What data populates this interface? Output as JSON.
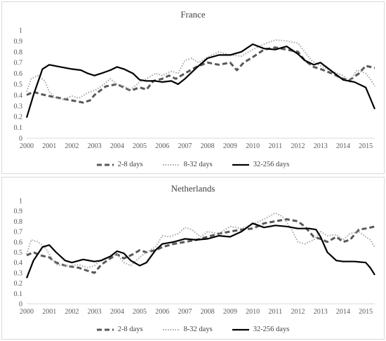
{
  "chart_data": [
    {
      "type": "line",
      "title": "France",
      "xlabel": "",
      "ylabel": "",
      "xlim": [
        2000,
        2015.4
      ],
      "ylim": [
        0,
        1
      ],
      "x_ticks": [
        "2000",
        "2001",
        "2002",
        "2003",
        "2004",
        "2005",
        "2006",
        "2007",
        "2008",
        "2009",
        "2010",
        "2011",
        "2012",
        "2013",
        "2014",
        "2015"
      ],
      "y_ticks": [
        "0",
        "0.1",
        "0.2",
        "0.3",
        "0.4",
        "0.5",
        "0.6",
        "0.7",
        "0.8",
        "0.9",
        "1"
      ],
      "grid": false,
      "legend_position": "bottom",
      "series": [
        {
          "name": "2-8 days",
          "style": "dashed",
          "color": "#595959",
          "points": [
            [
              2000,
              0.4
            ],
            [
              2000.3,
              0.43
            ],
            [
              2000.6,
              0.41
            ],
            [
              2001,
              0.39
            ],
            [
              2001.5,
              0.37
            ],
            [
              2002,
              0.35
            ],
            [
              2002.5,
              0.33
            ],
            [
              2002.8,
              0.35
            ],
            [
              2003,
              0.4
            ],
            [
              2003.5,
              0.48
            ],
            [
              2004,
              0.5
            ],
            [
              2004.3,
              0.47
            ],
            [
              2004.6,
              0.44
            ],
            [
              2005,
              0.47
            ],
            [
              2005.3,
              0.45
            ],
            [
              2005.6,
              0.53
            ],
            [
              2006,
              0.55
            ],
            [
              2006.3,
              0.58
            ],
            [
              2006.6,
              0.55
            ],
            [
              2007,
              0.6
            ],
            [
              2007.5,
              0.66
            ],
            [
              2008,
              0.7
            ],
            [
              2008.5,
              0.68
            ],
            [
              2009,
              0.7
            ],
            [
              2009.3,
              0.63
            ],
            [
              2009.6,
              0.7
            ],
            [
              2010,
              0.75
            ],
            [
              2010.5,
              0.82
            ],
            [
              2011,
              0.84
            ],
            [
              2011.5,
              0.82
            ],
            [
              2012,
              0.8
            ],
            [
              2012.3,
              0.72
            ],
            [
              2012.7,
              0.66
            ],
            [
              2013,
              0.64
            ],
            [
              2013.5,
              0.6
            ],
            [
              2014,
              0.55
            ],
            [
              2014.3,
              0.54
            ],
            [
              2014.7,
              0.6
            ],
            [
              2015,
              0.67
            ],
            [
              2015.4,
              0.65
            ]
          ]
        },
        {
          "name": "8-32 days",
          "style": "dotted",
          "color": "#a6a6a6",
          "points": [
            [
              2000,
              0.43
            ],
            [
              2000.2,
              0.55
            ],
            [
              2000.5,
              0.58
            ],
            [
              2000.8,
              0.53
            ],
            [
              2001,
              0.43
            ],
            [
              2001.3,
              0.37
            ],
            [
              2001.6,
              0.36
            ],
            [
              2002,
              0.39
            ],
            [
              2002.3,
              0.37
            ],
            [
              2002.7,
              0.42
            ],
            [
              2003,
              0.44
            ],
            [
              2003.3,
              0.48
            ],
            [
              2003.7,
              0.55
            ],
            [
              2004,
              0.5
            ],
            [
              2004.3,
              0.48
            ],
            [
              2004.6,
              0.45
            ],
            [
              2005,
              0.52
            ],
            [
              2005.3,
              0.55
            ],
            [
              2005.7,
              0.6
            ],
            [
              2006,
              0.58
            ],
            [
              2006.4,
              0.62
            ],
            [
              2006.7,
              0.6
            ],
            [
              2007,
              0.72
            ],
            [
              2007.3,
              0.74
            ],
            [
              2007.6,
              0.7
            ],
            [
              2008,
              0.75
            ],
            [
              2008.5,
              0.8
            ],
            [
              2009,
              0.77
            ],
            [
              2009.5,
              0.76
            ],
            [
              2010,
              0.82
            ],
            [
              2010.5,
              0.87
            ],
            [
              2011,
              0.91
            ],
            [
              2011.5,
              0.9
            ],
            [
              2012,
              0.88
            ],
            [
              2012.3,
              0.8
            ],
            [
              2012.6,
              0.72
            ],
            [
              2013,
              0.67
            ],
            [
              2013.5,
              0.62
            ],
            [
              2014,
              0.58
            ],
            [
              2014.3,
              0.52
            ],
            [
              2014.6,
              0.63
            ],
            [
              2015,
              0.6
            ],
            [
              2015.2,
              0.55
            ],
            [
              2015.4,
              0.48
            ]
          ]
        },
        {
          "name": "32-256 days",
          "style": "solid",
          "color": "#000000",
          "points": [
            [
              2000,
              0.19
            ],
            [
              2000.3,
              0.4
            ],
            [
              2000.7,
              0.64
            ],
            [
              2001,
              0.68
            ],
            [
              2001.5,
              0.66
            ],
            [
              2002,
              0.64
            ],
            [
              2002.4,
              0.63
            ],
            [
              2002.7,
              0.6
            ],
            [
              2003,
              0.58
            ],
            [
              2003.3,
              0.6
            ],
            [
              2003.7,
              0.63
            ],
            [
              2004,
              0.66
            ],
            [
              2004.3,
              0.64
            ],
            [
              2004.7,
              0.6
            ],
            [
              2005,
              0.54
            ],
            [
              2005.3,
              0.53
            ],
            [
              2005.7,
              0.53
            ],
            [
              2006,
              0.52
            ],
            [
              2006.4,
              0.53
            ],
            [
              2006.7,
              0.5
            ],
            [
              2007,
              0.55
            ],
            [
              2007.5,
              0.65
            ],
            [
              2008,
              0.74
            ],
            [
              2008.5,
              0.77
            ],
            [
              2009,
              0.77
            ],
            [
              2009.5,
              0.8
            ],
            [
              2010,
              0.87
            ],
            [
              2010.5,
              0.83
            ],
            [
              2011,
              0.82
            ],
            [
              2011.5,
              0.85
            ],
            [
              2012,
              0.78
            ],
            [
              2012.3,
              0.72
            ],
            [
              2012.7,
              0.68
            ],
            [
              2013,
              0.7
            ],
            [
              2013.5,
              0.62
            ],
            [
              2014,
              0.54
            ],
            [
              2014.5,
              0.52
            ],
            [
              2015,
              0.47
            ],
            [
              2015.2,
              0.37
            ],
            [
              2015.4,
              0.27
            ]
          ]
        }
      ]
    },
    {
      "type": "line",
      "title": "Netherlands",
      "xlabel": "",
      "ylabel": "",
      "xlim": [
        2000,
        2015.4
      ],
      "ylim": [
        0,
        1
      ],
      "x_ticks": [
        "2000",
        "2001",
        "2002",
        "2003",
        "2004",
        "2005",
        "2006",
        "2007",
        "2008",
        "2009",
        "2010",
        "2011",
        "2012",
        "2013",
        "2014",
        "2015"
      ],
      "y_ticks": [
        "0",
        "0.1",
        "0.2",
        "0.3",
        "0.4",
        "0.5",
        "0.6",
        "0.7",
        "0.8",
        "0.9",
        "1"
      ],
      "grid": false,
      "legend_position": "bottom",
      "series": [
        {
          "name": "2-8 days",
          "style": "dashed",
          "color": "#595959",
          "points": [
            [
              2000,
              0.47
            ],
            [
              2000.3,
              0.5
            ],
            [
              2000.6,
              0.47
            ],
            [
              2001,
              0.45
            ],
            [
              2001.3,
              0.4
            ],
            [
              2001.7,
              0.37
            ],
            [
              2002,
              0.36
            ],
            [
              2002.3,
              0.35
            ],
            [
              2002.7,
              0.32
            ],
            [
              2003,
              0.3
            ],
            [
              2003.3,
              0.38
            ],
            [
              2003.7,
              0.44
            ],
            [
              2004,
              0.48
            ],
            [
              2004.3,
              0.44
            ],
            [
              2004.7,
              0.48
            ],
            [
              2005,
              0.52
            ],
            [
              2005.3,
              0.5
            ],
            [
              2005.7,
              0.52
            ],
            [
              2006,
              0.55
            ],
            [
              2006.5,
              0.58
            ],
            [
              2007,
              0.6
            ],
            [
              2007.5,
              0.62
            ],
            [
              2008,
              0.65
            ],
            [
              2008.5,
              0.68
            ],
            [
              2009,
              0.7
            ],
            [
              2009.5,
              0.72
            ],
            [
              2010,
              0.73
            ],
            [
              2010.5,
              0.78
            ],
            [
              2011,
              0.8
            ],
            [
              2011.5,
              0.82
            ],
            [
              2012,
              0.8
            ],
            [
              2012.3,
              0.75
            ],
            [
              2012.7,
              0.65
            ],
            [
              2013,
              0.63
            ],
            [
              2013.3,
              0.6
            ],
            [
              2013.7,
              0.65
            ],
            [
              2014,
              0.6
            ],
            [
              2014.3,
              0.62
            ],
            [
              2014.7,
              0.72
            ],
            [
              2015,
              0.73
            ],
            [
              2015.4,
              0.75
            ]
          ]
        },
        {
          "name": "8-32 days",
          "style": "dotted",
          "color": "#a6a6a6",
          "points": [
            [
              2000,
              0.48
            ],
            [
              2000.2,
              0.62
            ],
            [
              2000.5,
              0.6
            ],
            [
              2000.8,
              0.55
            ],
            [
              2001,
              0.48
            ],
            [
              2001.3,
              0.38
            ],
            [
              2001.7,
              0.37
            ],
            [
              2002,
              0.37
            ],
            [
              2002.3,
              0.38
            ],
            [
              2002.7,
              0.35
            ],
            [
              2003,
              0.37
            ],
            [
              2003.3,
              0.43
            ],
            [
              2003.7,
              0.46
            ],
            [
              2004,
              0.48
            ],
            [
              2004.3,
              0.4
            ],
            [
              2004.6,
              0.37
            ],
            [
              2005,
              0.45
            ],
            [
              2005.3,
              0.5
            ],
            [
              2005.7,
              0.55
            ],
            [
              2006,
              0.66
            ],
            [
              2006.3,
              0.65
            ],
            [
              2006.7,
              0.68
            ],
            [
              2007,
              0.74
            ],
            [
              2007.3,
              0.72
            ],
            [
              2007.7,
              0.65
            ],
            [
              2008,
              0.7
            ],
            [
              2008.5,
              0.68
            ],
            [
              2009,
              0.75
            ],
            [
              2009.5,
              0.73
            ],
            [
              2010,
              0.77
            ],
            [
              2010.5,
              0.82
            ],
            [
              2011,
              0.88
            ],
            [
              2011.3,
              0.85
            ],
            [
              2011.7,
              0.73
            ],
            [
              2012,
              0.6
            ],
            [
              2012.3,
              0.58
            ],
            [
              2012.7,
              0.62
            ],
            [
              2013,
              0.7
            ],
            [
              2013.3,
              0.66
            ],
            [
              2013.7,
              0.67
            ],
            [
              2014,
              0.62
            ],
            [
              2014.3,
              0.68
            ],
            [
              2014.7,
              0.7
            ],
            [
              2015,
              0.65
            ],
            [
              2015.2,
              0.62
            ],
            [
              2015.4,
              0.55
            ]
          ]
        },
        {
          "name": "32-256 days",
          "style": "solid",
          "color": "#000000",
          "points": [
            [
              2000,
              0.25
            ],
            [
              2000.3,
              0.42
            ],
            [
              2000.7,
              0.55
            ],
            [
              2001,
              0.57
            ],
            [
              2001.3,
              0.5
            ],
            [
              2001.7,
              0.42
            ],
            [
              2002,
              0.4
            ],
            [
              2002.5,
              0.43
            ],
            [
              2003,
              0.41
            ],
            [
              2003.3,
              0.42
            ],
            [
              2003.7,
              0.46
            ],
            [
              2004,
              0.51
            ],
            [
              2004.3,
              0.49
            ],
            [
              2004.6,
              0.42
            ],
            [
              2005,
              0.37
            ],
            [
              2005.3,
              0.4
            ],
            [
              2005.7,
              0.52
            ],
            [
              2006,
              0.58
            ],
            [
              2006.5,
              0.6
            ],
            [
              2007,
              0.63
            ],
            [
              2007.5,
              0.62
            ],
            [
              2008,
              0.63
            ],
            [
              2008.5,
              0.66
            ],
            [
              2009,
              0.65
            ],
            [
              2009.5,
              0.7
            ],
            [
              2010,
              0.78
            ],
            [
              2010.5,
              0.74
            ],
            [
              2011,
              0.76
            ],
            [
              2011.5,
              0.75
            ],
            [
              2012,
              0.73
            ],
            [
              2012.5,
              0.73
            ],
            [
              2012.8,
              0.72
            ],
            [
              2013,
              0.65
            ],
            [
              2013.3,
              0.5
            ],
            [
              2013.7,
              0.42
            ],
            [
              2014,
              0.41
            ],
            [
              2014.5,
              0.41
            ],
            [
              2015,
              0.4
            ],
            [
              2015.2,
              0.35
            ],
            [
              2015.4,
              0.28
            ]
          ]
        }
      ]
    }
  ]
}
